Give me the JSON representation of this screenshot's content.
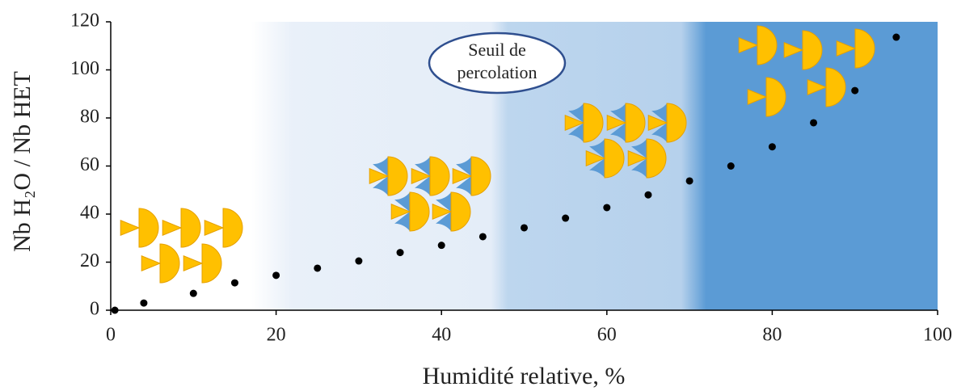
{
  "chart_data": {
    "type": "scatter",
    "x_label": "Humidité relative, %",
    "y_label": "Nb H₂O / Nb HET",
    "annotation": [
      "Seuil de",
      "percolation"
    ],
    "x": [
      0.5,
      4,
      10,
      15,
      20,
      25,
      30,
      35,
      40,
      45,
      50,
      55,
      60,
      65,
      70,
      75,
      80,
      85,
      90,
      95
    ],
    "values": [
      0,
      3,
      7,
      11.4,
      14.5,
      17.5,
      20.5,
      24,
      27,
      30.6,
      34.3,
      38.3,
      42.7,
      48,
      53.8,
      60,
      68,
      78,
      91.4,
      113.6
    ],
    "color": "#000000",
    "xlim": [
      0,
      100
    ],
    "xticks": [
      0,
      20,
      40,
      60,
      80,
      100
    ],
    "ylim": [
      0,
      120
    ],
    "yticks": [
      0,
      20,
      40,
      60,
      80,
      100,
      120
    ],
    "grid": false
  }
}
